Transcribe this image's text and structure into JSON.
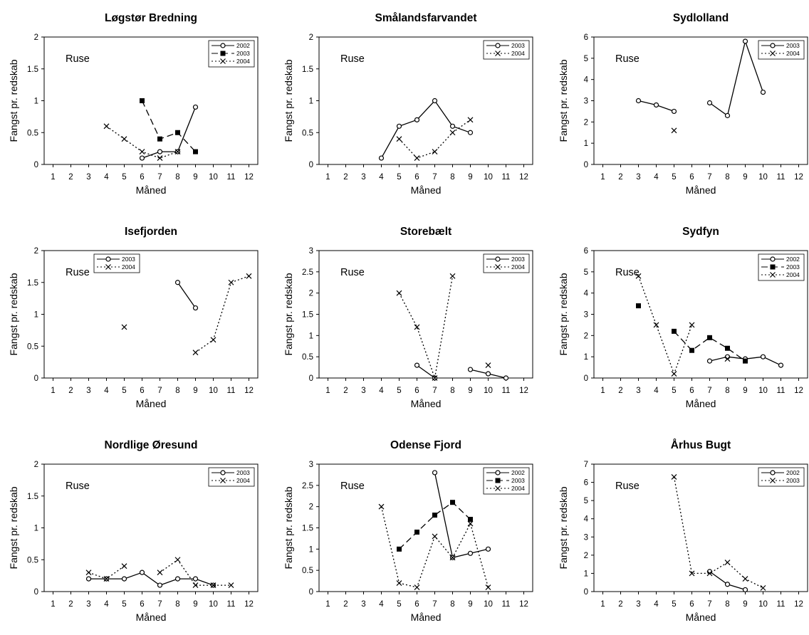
{
  "figure": {
    "xlabel": "Måned",
    "ylabel": "Fangst pr. redskab",
    "annotation": "Ruse",
    "x_ticks": [
      1,
      2,
      3,
      4,
      5,
      6,
      7,
      8,
      9,
      10,
      11,
      12
    ]
  },
  "styles": {
    "2002": {
      "dash": "",
      "marker": "circle",
      "color": "#000000"
    },
    "2003": {
      "dash": "9,5",
      "marker": "square",
      "color": "#000000"
    },
    "2004": {
      "dash": "2,3",
      "marker": "x",
      "color": "#000000"
    }
  },
  "chart_data": [
    {
      "type": "line",
      "title": "Løgstør Bredning",
      "xlabel": "Måned",
      "ylabel": "Fangst pr. redskab",
      "annotation": "Ruse",
      "xlim": [
        0.5,
        12.5
      ],
      "ylim": [
        0,
        2
      ],
      "yticks": [
        0,
        0.5,
        1,
        1.5,
        2
      ],
      "legend_position": "top-right",
      "series": [
        {
          "name": "2002",
          "style": "2002",
          "points": [
            [
              6,
              0.1
            ],
            [
              7,
              0.2
            ],
            [
              8,
              0.2
            ],
            [
              9,
              0.9
            ]
          ]
        },
        {
          "name": "2003",
          "style": "2003",
          "points": [
            [
              6,
              1.0
            ],
            [
              7,
              0.4
            ],
            [
              8,
              0.5
            ],
            [
              9,
              0.2
            ]
          ]
        },
        {
          "name": "2004",
          "style": "2004",
          "points": [
            [
              4,
              0.6
            ],
            [
              5,
              0.4
            ],
            [
              6,
              0.2
            ],
            [
              7,
              0.1
            ],
            [
              8,
              0.2
            ]
          ]
        }
      ]
    },
    {
      "type": "line",
      "title": "Smålandsfarvandet",
      "xlabel": "Måned",
      "ylabel": "Fangst pr. redskab",
      "annotation": "Ruse",
      "xlim": [
        0.5,
        12.5
      ],
      "ylim": [
        0,
        2
      ],
      "yticks": [
        0,
        0.5,
        1,
        1.5,
        2
      ],
      "legend_position": "top-right",
      "series": [
        {
          "name": "2003",
          "style": "2002",
          "points": [
            [
              4,
              0.1
            ],
            [
              5,
              0.6
            ],
            [
              6,
              0.7
            ],
            [
              7,
              1.0
            ],
            [
              8,
              0.6
            ],
            [
              9,
              0.5
            ]
          ]
        },
        {
          "name": "2004",
          "style": "2004",
          "points": [
            [
              5,
              0.4
            ],
            [
              6,
              0.1
            ],
            [
              7,
              0.2
            ],
            [
              8,
              0.5
            ],
            [
              9,
              0.7
            ]
          ]
        }
      ]
    },
    {
      "type": "line",
      "title": "Sydlolland",
      "xlabel": "Måned",
      "ylabel": "Fangst pr. redskab",
      "annotation": "Ruse",
      "xlim": [
        0.5,
        12.5
      ],
      "ylim": [
        0,
        6
      ],
      "yticks": [
        0,
        1,
        2,
        3,
        4,
        5,
        6
      ],
      "legend_position": "top-right",
      "series": [
        {
          "name": "2003",
          "style": "2002",
          "points": [
            [
              3,
              3.0
            ],
            [
              4,
              2.8
            ],
            [
              5,
              2.5
            ],
            [
              6,
              null
            ],
            [
              7,
              2.9
            ],
            [
              8,
              2.3
            ],
            [
              9,
              5.8
            ],
            [
              10,
              3.4
            ]
          ]
        },
        {
          "name": "2004",
          "style": "2004",
          "points": [
            [
              5,
              1.6
            ]
          ]
        }
      ]
    },
    {
      "type": "line",
      "title": "Isefjorden",
      "xlabel": "Måned",
      "ylabel": "Fangst pr. redskab",
      "annotation": "Ruse",
      "xlim": [
        0.5,
        12.5
      ],
      "ylim": [
        0,
        2
      ],
      "yticks": [
        0,
        0.5,
        1,
        1.5,
        2
      ],
      "legend_position": "top-left",
      "series": [
        {
          "name": "2003",
          "style": "2002",
          "points": [
            [
              8,
              1.5
            ],
            [
              9,
              1.1
            ]
          ]
        },
        {
          "name": "2004",
          "style": "2004",
          "points": [
            [
              5,
              0.8
            ],
            [
              6,
              null
            ],
            [
              9,
              0.4
            ],
            [
              10,
              0.6
            ],
            [
              11,
              1.5
            ],
            [
              12,
              1.6
            ]
          ]
        }
      ]
    },
    {
      "type": "line",
      "title": "Storebælt",
      "xlabel": "Måned",
      "ylabel": "Fangst pr. redskab",
      "annotation": "Ruse",
      "xlim": [
        0.5,
        12.5
      ],
      "ylim": [
        0,
        3
      ],
      "yticks": [
        0,
        0.5,
        1,
        1.5,
        2,
        2.5,
        3
      ],
      "legend_position": "top-right",
      "series": [
        {
          "name": "2003",
          "style": "2002",
          "points": [
            [
              6,
              0.3
            ],
            [
              7,
              0.0
            ],
            [
              8,
              null
            ],
            [
              9,
              0.2
            ],
            [
              10,
              0.1
            ],
            [
              11,
              0.0
            ]
          ]
        },
        {
          "name": "2004",
          "style": "2004",
          "points": [
            [
              5,
              2.0
            ],
            [
              6,
              1.2
            ],
            [
              7,
              0.0
            ],
            [
              8,
              2.4
            ],
            [
              9,
              null
            ],
            [
              10,
              0.3
            ]
          ]
        }
      ]
    },
    {
      "type": "line",
      "title": "Sydfyn",
      "xlabel": "Måned",
      "ylabel": "Fangst pr. redskab",
      "annotation": "Ruse",
      "xlim": [
        0.5,
        12.5
      ],
      "ylim": [
        0,
        6
      ],
      "yticks": [
        0,
        1,
        2,
        3,
        4,
        5,
        6
      ],
      "legend_position": "top-right",
      "series": [
        {
          "name": "2002",
          "style": "2002",
          "points": [
            [
              7,
              0.8
            ],
            [
              8,
              1.0
            ],
            [
              9,
              0.9
            ],
            [
              10,
              1.0
            ],
            [
              11,
              0.6
            ]
          ]
        },
        {
          "name": "2003",
          "style": "2003",
          "points": [
            [
              3,
              3.4
            ],
            [
              4,
              null
            ],
            [
              5,
              2.2
            ],
            [
              6,
              1.3
            ],
            [
              7,
              1.9
            ],
            [
              8,
              1.4
            ],
            [
              9,
              0.8
            ]
          ]
        },
        {
          "name": "2004",
          "style": "2004",
          "points": [
            [
              3,
              4.8
            ],
            [
              4,
              2.5
            ],
            [
              5,
              0.2
            ],
            [
              6,
              2.5
            ],
            [
              7,
              null
            ],
            [
              8,
              0.9
            ]
          ]
        }
      ]
    },
    {
      "type": "line",
      "title": "Nordlige Øresund",
      "xlabel": "Måned",
      "ylabel": "Fangst pr. redskab",
      "annotation": "Ruse",
      "xlim": [
        0.5,
        12.5
      ],
      "ylim": [
        0,
        2
      ],
      "yticks": [
        0,
        0.5,
        1,
        1.5,
        2
      ],
      "legend_position": "top-right",
      "series": [
        {
          "name": "2003",
          "style": "2002",
          "points": [
            [
              3,
              0.2
            ],
            [
              4,
              0.2
            ],
            [
              5,
              0.2
            ],
            [
              6,
              0.3
            ],
            [
              7,
              0.1
            ],
            [
              8,
              0.2
            ],
            [
              9,
              0.2
            ],
            [
              10,
              0.1
            ]
          ]
        },
        {
          "name": "2004",
          "style": "2004",
          "points": [
            [
              3,
              0.3
            ],
            [
              4,
              0.2
            ],
            [
              5,
              0.4
            ],
            [
              6,
              null
            ],
            [
              7,
              0.3
            ],
            [
              8,
              0.5
            ],
            [
              9,
              0.1
            ],
            [
              10,
              0.1
            ],
            [
              11,
              0.1
            ]
          ]
        }
      ]
    },
    {
      "type": "line",
      "title": "Odense Fjord",
      "xlabel": "Måned",
      "ylabel": "Fangst pr. redskab",
      "annotation": "Ruse",
      "xlim": [
        0.5,
        12.5
      ],
      "ylim": [
        0,
        3
      ],
      "yticks": [
        0,
        0.5,
        1,
        1.5,
        2,
        2.5,
        3
      ],
      "legend_position": "top-right",
      "series": [
        {
          "name": "2002",
          "style": "2002",
          "points": [
            [
              7,
              2.8
            ],
            [
              8,
              0.8
            ],
            [
              9,
              0.9
            ],
            [
              10,
              1.0
            ]
          ]
        },
        {
          "name": "2003",
          "style": "2003",
          "points": [
            [
              5,
              1.0
            ],
            [
              6,
              1.4
            ],
            [
              7,
              1.8
            ],
            [
              8,
              2.1
            ],
            [
              9,
              1.7
            ]
          ]
        },
        {
          "name": "2004",
          "style": "2004",
          "points": [
            [
              4,
              2.0
            ],
            [
              5,
              0.2
            ],
            [
              6,
              0.1
            ],
            [
              7,
              1.3
            ],
            [
              8,
              0.8
            ],
            [
              9,
              1.6
            ],
            [
              10,
              0.1
            ]
          ]
        }
      ]
    },
    {
      "type": "line",
      "title": "Århus Bugt",
      "xlabel": "Måned",
      "ylabel": "Fangst pr. redskab",
      "annotation": "Ruse",
      "xlim": [
        0.5,
        12.5
      ],
      "ylim": [
        0,
        7
      ],
      "yticks": [
        0,
        1,
        2,
        3,
        4,
        5,
        6,
        7
      ],
      "legend_position": "top-right",
      "series": [
        {
          "name": "2002",
          "style": "2002",
          "points": [
            [
              7,
              1.1
            ],
            [
              8,
              0.4
            ],
            [
              9,
              0.1
            ]
          ]
        },
        {
          "name": "2003",
          "style": "2004",
          "points": [
            [
              5,
              6.3
            ],
            [
              6,
              1.0
            ],
            [
              7,
              1.0
            ],
            [
              8,
              1.6
            ],
            [
              9,
              0.7
            ],
            [
              10,
              0.2
            ]
          ]
        }
      ]
    }
  ]
}
